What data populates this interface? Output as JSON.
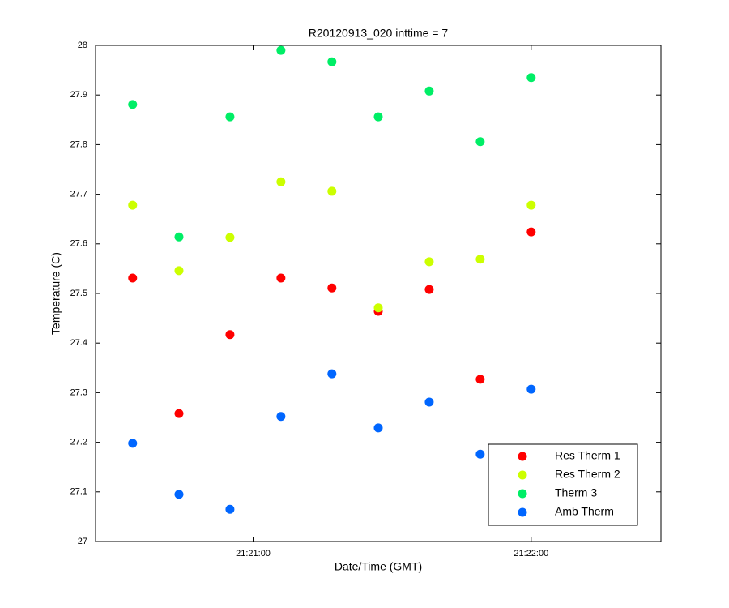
{
  "chart_data": {
    "type": "scatter",
    "title": "R20120913_020 inttime = 7",
    "xlabel": "Date/Time (GMT)",
    "ylabel": "Temperature (C)",
    "x": [
      "21:20:34",
      "21:20:44",
      "21:20:55",
      "21:21:06",
      "21:21:17",
      "21:21:27",
      "21:21:38",
      "21:21:49",
      "21:22:00"
    ],
    "xlim": [
      "21:20:26",
      "21:22:28"
    ],
    "xticks": [
      "21:21:00",
      "21:22:00"
    ],
    "ylim": [
      27,
      28
    ],
    "yticks": [
      27,
      27.1,
      27.2,
      27.3,
      27.4,
      27.5,
      27.6,
      27.7,
      27.8,
      27.9,
      28
    ],
    "legend_location": "lower right",
    "series": [
      {
        "name": "Res Therm 1",
        "color": "#ff0000",
        "values": [
          27.531,
          27.258,
          27.417,
          27.531,
          27.511,
          27.464,
          27.508,
          27.327,
          27.624
        ]
      },
      {
        "name": "Res Therm 2",
        "color": "#ccff00",
        "values": [
          27.678,
          27.546,
          27.613,
          27.725,
          27.706,
          27.471,
          27.564,
          27.569,
          27.678
        ]
      },
      {
        "name": "Therm 3",
        "color": "#00ee66",
        "values": [
          27.881,
          27.614,
          27.856,
          27.99,
          27.967,
          27.856,
          27.908,
          27.806,
          27.935
        ]
      },
      {
        "name": "Amb Therm",
        "color": "#0066ff",
        "values": [
          27.198,
          27.095,
          27.065,
          27.252,
          27.338,
          27.229,
          27.281,
          27.176,
          27.307
        ]
      }
    ]
  }
}
